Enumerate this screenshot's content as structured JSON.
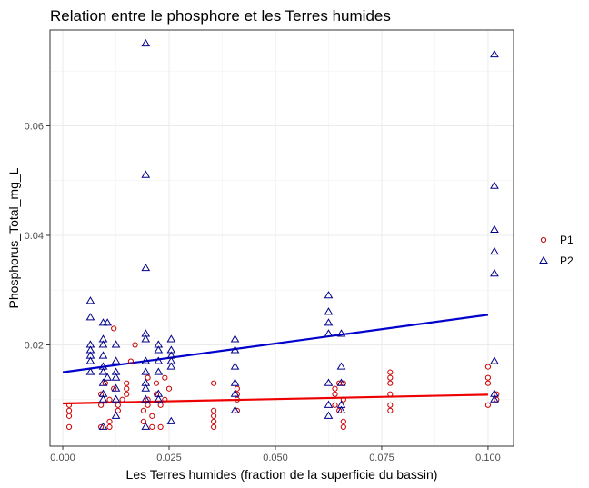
{
  "chart_data": {
    "type": "scatter",
    "title": "Relation entre le phosphore et les Terres humides",
    "xlabel": "Les Terres humides (fraction de la superficie du bassin)",
    "ylabel": "Phosphorus_Total_mg_L",
    "xlim": [
      -0.003,
      0.106
    ],
    "ylim": [
      0.0015,
      0.0775
    ],
    "x_ticks": [
      0.0,
      0.025,
      0.05,
      0.075,
      0.1
    ],
    "x_tick_labels": [
      "0.000",
      "0.025",
      "0.050",
      "0.075",
      "0.100"
    ],
    "y_ticks": [
      0.02,
      0.04,
      0.06
    ],
    "y_tick_labels": [
      "0.02",
      "0.04",
      "0.06"
    ],
    "grid": true,
    "legend_position": "right",
    "series": [
      {
        "name": "P1",
        "marker": "circle",
        "color": "#cc0000",
        "points": [
          [
            0.0015,
            0.005
          ],
          [
            0.0015,
            0.007
          ],
          [
            0.0015,
            0.008
          ],
          [
            0.0015,
            0.009
          ],
          [
            0.009,
            0.005
          ],
          [
            0.009,
            0.009
          ],
          [
            0.009,
            0.011
          ],
          [
            0.01,
            0.013
          ],
          [
            0.011,
            0.005
          ],
          [
            0.011,
            0.006
          ],
          [
            0.011,
            0.01
          ],
          [
            0.012,
            0.012
          ],
          [
            0.012,
            0.023
          ],
          [
            0.013,
            0.008
          ],
          [
            0.013,
            0.009
          ],
          [
            0.014,
            0.01
          ],
          [
            0.015,
            0.011
          ],
          [
            0.015,
            0.012
          ],
          [
            0.015,
            0.013
          ],
          [
            0.016,
            0.017
          ],
          [
            0.017,
            0.02
          ],
          [
            0.019,
            0.006
          ],
          [
            0.019,
            0.008
          ],
          [
            0.02,
            0.009
          ],
          [
            0.02,
            0.01
          ],
          [
            0.02,
            0.014
          ],
          [
            0.021,
            0.005
          ],
          [
            0.021,
            0.007
          ],
          [
            0.022,
            0.011
          ],
          [
            0.022,
            0.013
          ],
          [
            0.023,
            0.005
          ],
          [
            0.023,
            0.009
          ],
          [
            0.024,
            0.01
          ],
          [
            0.024,
            0.014
          ],
          [
            0.025,
            0.012
          ],
          [
            0.0355,
            0.005
          ],
          [
            0.0355,
            0.006
          ],
          [
            0.0355,
            0.007
          ],
          [
            0.0355,
            0.008
          ],
          [
            0.0355,
            0.013
          ],
          [
            0.041,
            0.008
          ],
          [
            0.041,
            0.01
          ],
          [
            0.041,
            0.011
          ],
          [
            0.041,
            0.012
          ],
          [
            0.064,
            0.009
          ],
          [
            0.064,
            0.011
          ],
          [
            0.064,
            0.012
          ],
          [
            0.065,
            0.008
          ],
          [
            0.065,
            0.013
          ],
          [
            0.066,
            0.005
          ],
          [
            0.066,
            0.006
          ],
          [
            0.066,
            0.01
          ],
          [
            0.066,
            0.013
          ],
          [
            0.077,
            0.008
          ],
          [
            0.077,
            0.009
          ],
          [
            0.077,
            0.011
          ],
          [
            0.077,
            0.013
          ],
          [
            0.077,
            0.014
          ],
          [
            0.077,
            0.015
          ],
          [
            0.1,
            0.009
          ],
          [
            0.1,
            0.013
          ],
          [
            0.1,
            0.014
          ],
          [
            0.1,
            0.016
          ],
          [
            0.102,
            0.01
          ],
          [
            0.102,
            0.011
          ]
        ]
      },
      {
        "name": "P2",
        "marker": "triangle",
        "color": "#00008b",
        "points": [
          [
            0.0065,
            0.028
          ],
          [
            0.0065,
            0.025
          ],
          [
            0.0065,
            0.02
          ],
          [
            0.0065,
            0.019
          ],
          [
            0.0065,
            0.018
          ],
          [
            0.0065,
            0.017
          ],
          [
            0.0065,
            0.015
          ],
          [
            0.0095,
            0.024
          ],
          [
            0.0095,
            0.021
          ],
          [
            0.0095,
            0.02
          ],
          [
            0.0095,
            0.018
          ],
          [
            0.0095,
            0.016
          ],
          [
            0.0095,
            0.015
          ],
          [
            0.0095,
            0.013
          ],
          [
            0.0095,
            0.011
          ],
          [
            0.0095,
            0.01
          ],
          [
            0.0095,
            0.005
          ],
          [
            0.0105,
            0.024
          ],
          [
            0.0105,
            0.014
          ],
          [
            0.0125,
            0.02
          ],
          [
            0.0125,
            0.017
          ],
          [
            0.0125,
            0.015
          ],
          [
            0.0125,
            0.014
          ],
          [
            0.0125,
            0.012
          ],
          [
            0.0125,
            0.01
          ],
          [
            0.0125,
            0.007
          ],
          [
            0.0195,
            0.075
          ],
          [
            0.0195,
            0.051
          ],
          [
            0.0195,
            0.034
          ],
          [
            0.0195,
            0.022
          ],
          [
            0.0195,
            0.021
          ],
          [
            0.0195,
            0.017
          ],
          [
            0.0195,
            0.015
          ],
          [
            0.0195,
            0.013
          ],
          [
            0.0195,
            0.012
          ],
          [
            0.0195,
            0.01
          ],
          [
            0.0195,
            0.005
          ],
          [
            0.0225,
            0.02
          ],
          [
            0.0225,
            0.019
          ],
          [
            0.0225,
            0.017
          ],
          [
            0.0225,
            0.015
          ],
          [
            0.0225,
            0.011
          ],
          [
            0.0225,
            0.01
          ],
          [
            0.0255,
            0.021
          ],
          [
            0.0255,
            0.019
          ],
          [
            0.0255,
            0.018
          ],
          [
            0.0255,
            0.017
          ],
          [
            0.0255,
            0.016
          ],
          [
            0.0255,
            0.006
          ],
          [
            0.0405,
            0.021
          ],
          [
            0.0405,
            0.019
          ],
          [
            0.0405,
            0.016
          ],
          [
            0.0405,
            0.013
          ],
          [
            0.0405,
            0.011
          ],
          [
            0.0405,
            0.008
          ],
          [
            0.0625,
            0.029
          ],
          [
            0.0625,
            0.026
          ],
          [
            0.0625,
            0.024
          ],
          [
            0.0625,
            0.022
          ],
          [
            0.0625,
            0.013
          ],
          [
            0.0625,
            0.009
          ],
          [
            0.0625,
            0.007
          ],
          [
            0.0655,
            0.022
          ],
          [
            0.0655,
            0.016
          ],
          [
            0.0655,
            0.013
          ],
          [
            0.0655,
            0.009
          ],
          [
            0.0655,
            0.008
          ],
          [
            0.1015,
            0.073
          ],
          [
            0.1015,
            0.049
          ],
          [
            0.1015,
            0.041
          ],
          [
            0.1015,
            0.037
          ],
          [
            0.1015,
            0.033
          ],
          [
            0.1015,
            0.017
          ],
          [
            0.1015,
            0.011
          ],
          [
            0.1015,
            0.01
          ]
        ]
      }
    ],
    "trend_lines": [
      {
        "series": "P1",
        "color": "#ee0000",
        "x": [
          0.0,
          0.1
        ],
        "y": [
          0.0093,
          0.0109
        ]
      },
      {
        "series": "P2",
        "color": "#0000cc",
        "x": [
          0.0,
          0.1
        ],
        "y": [
          0.015,
          0.0255
        ]
      }
    ]
  }
}
